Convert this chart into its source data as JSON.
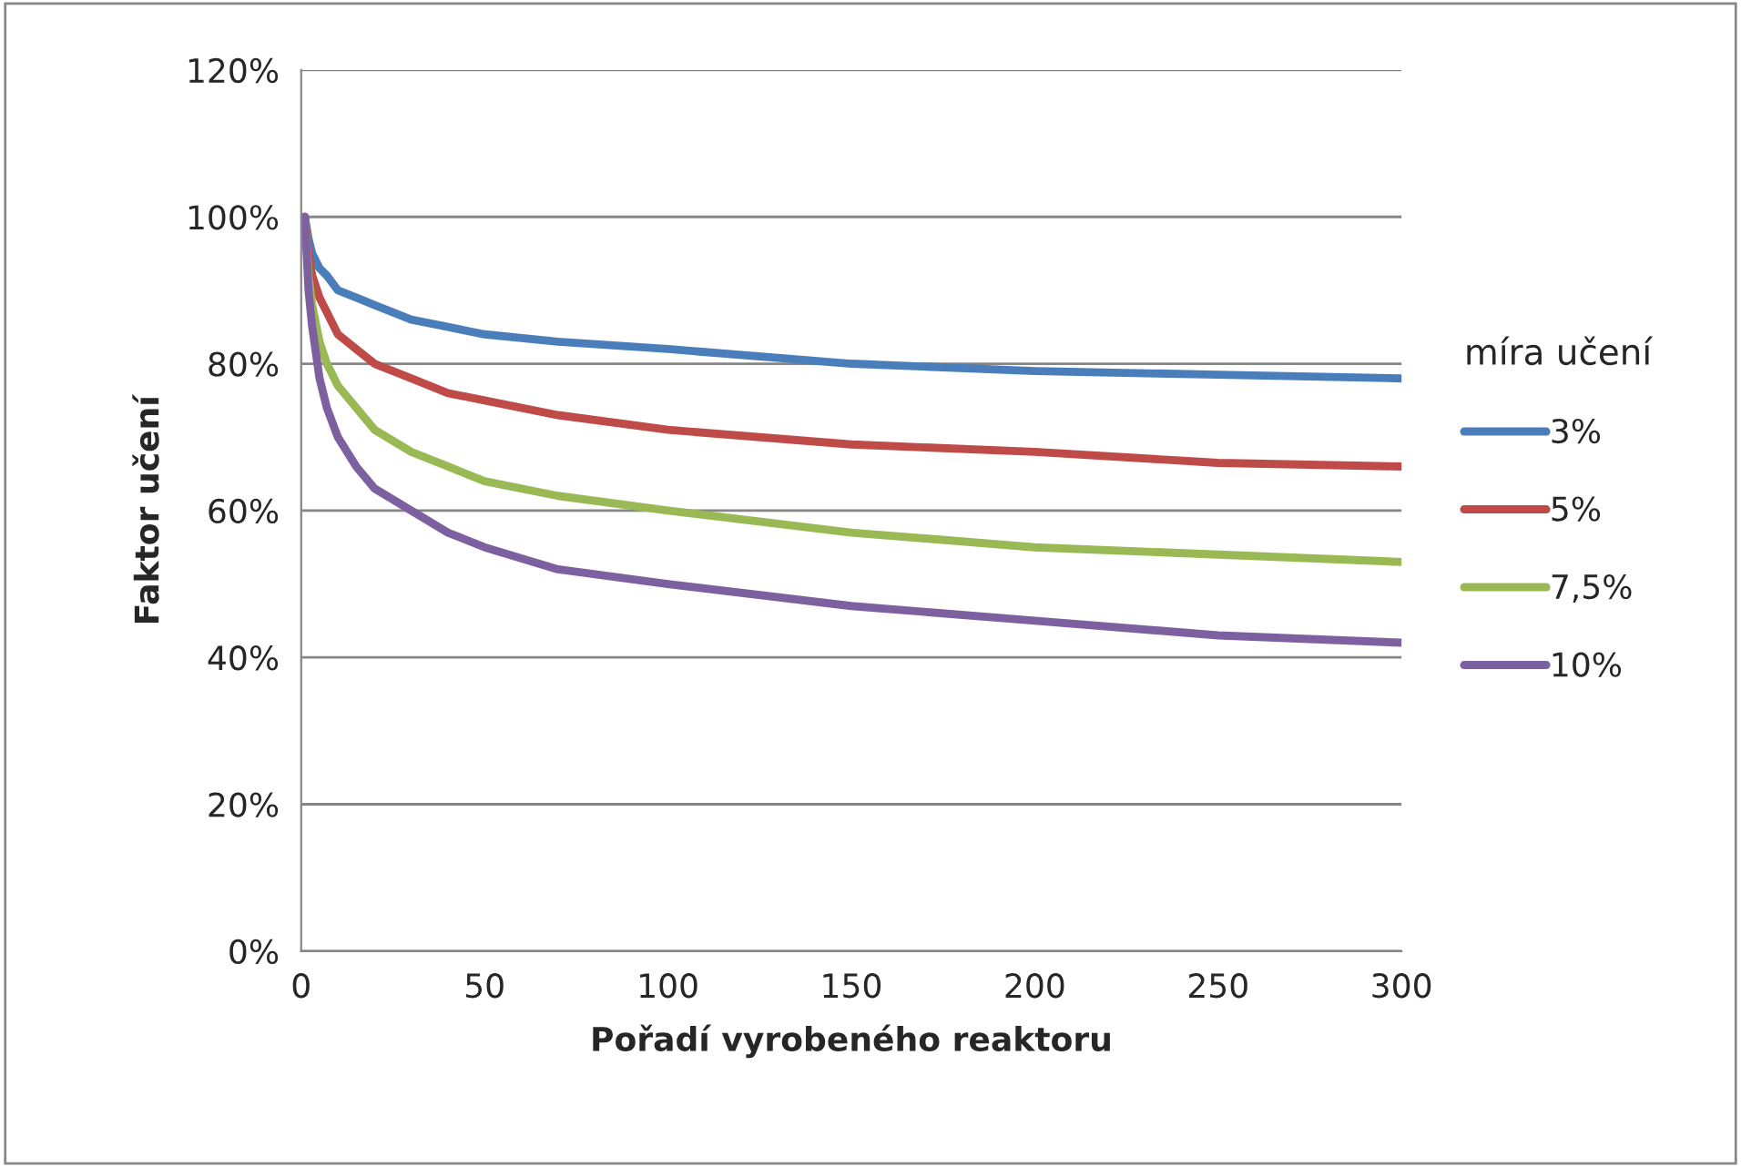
{
  "chart_data": {
    "type": "line",
    "xlabel": "Pořadí vyrobeného reaktoru",
    "ylabel": "Faktor učení",
    "legend_title": "míra učení",
    "x": [
      1,
      2,
      3,
      5,
      7,
      10,
      15,
      20,
      30,
      40,
      50,
      70,
      100,
      150,
      200,
      250,
      300
    ],
    "series": [
      {
        "name": "3%",
        "color": "#4a7ebb",
        "values": [
          100,
          97,
          95,
          93,
          92,
          90,
          89,
          88,
          86,
          85,
          84,
          83,
          82,
          80,
          79,
          78.5,
          78
        ]
      },
      {
        "name": "5%",
        "color": "#be4b48",
        "values": [
          100,
          95,
          92,
          89,
          87,
          84,
          82,
          80,
          78,
          76,
          75,
          73,
          71,
          69,
          68,
          66.5,
          66
        ]
      },
      {
        "name": "7,5%",
        "color": "#98b954",
        "values": [
          100,
          92,
          88,
          83,
          80,
          77,
          74,
          71,
          68,
          66,
          64,
          62,
          60,
          57,
          55,
          54,
          53
        ]
      },
      {
        "name": "10%",
        "color": "#7d60a0",
        "values": [
          100,
          90,
          85,
          78,
          74,
          70,
          66,
          63,
          60,
          57,
          55,
          52,
          50,
          47,
          45,
          43,
          42
        ]
      }
    ],
    "xlim": [
      0,
      300
    ],
    "xticks": [
      0,
      50,
      100,
      150,
      200,
      250,
      300
    ],
    "ylim": [
      0,
      120
    ],
    "yticks": [
      {
        "value": 0,
        "label": "0%"
      },
      {
        "value": 20,
        "label": "20%"
      },
      {
        "value": 40,
        "label": "40%"
      },
      {
        "value": 60,
        "label": "60%"
      },
      {
        "value": 80,
        "label": "80%"
      },
      {
        "value": 100,
        "label": "100%"
      },
      {
        "value": 120,
        "label": "120%"
      }
    ],
    "grid": "y",
    "legend": "right",
    "marker": "none",
    "line_style": "solid"
  }
}
